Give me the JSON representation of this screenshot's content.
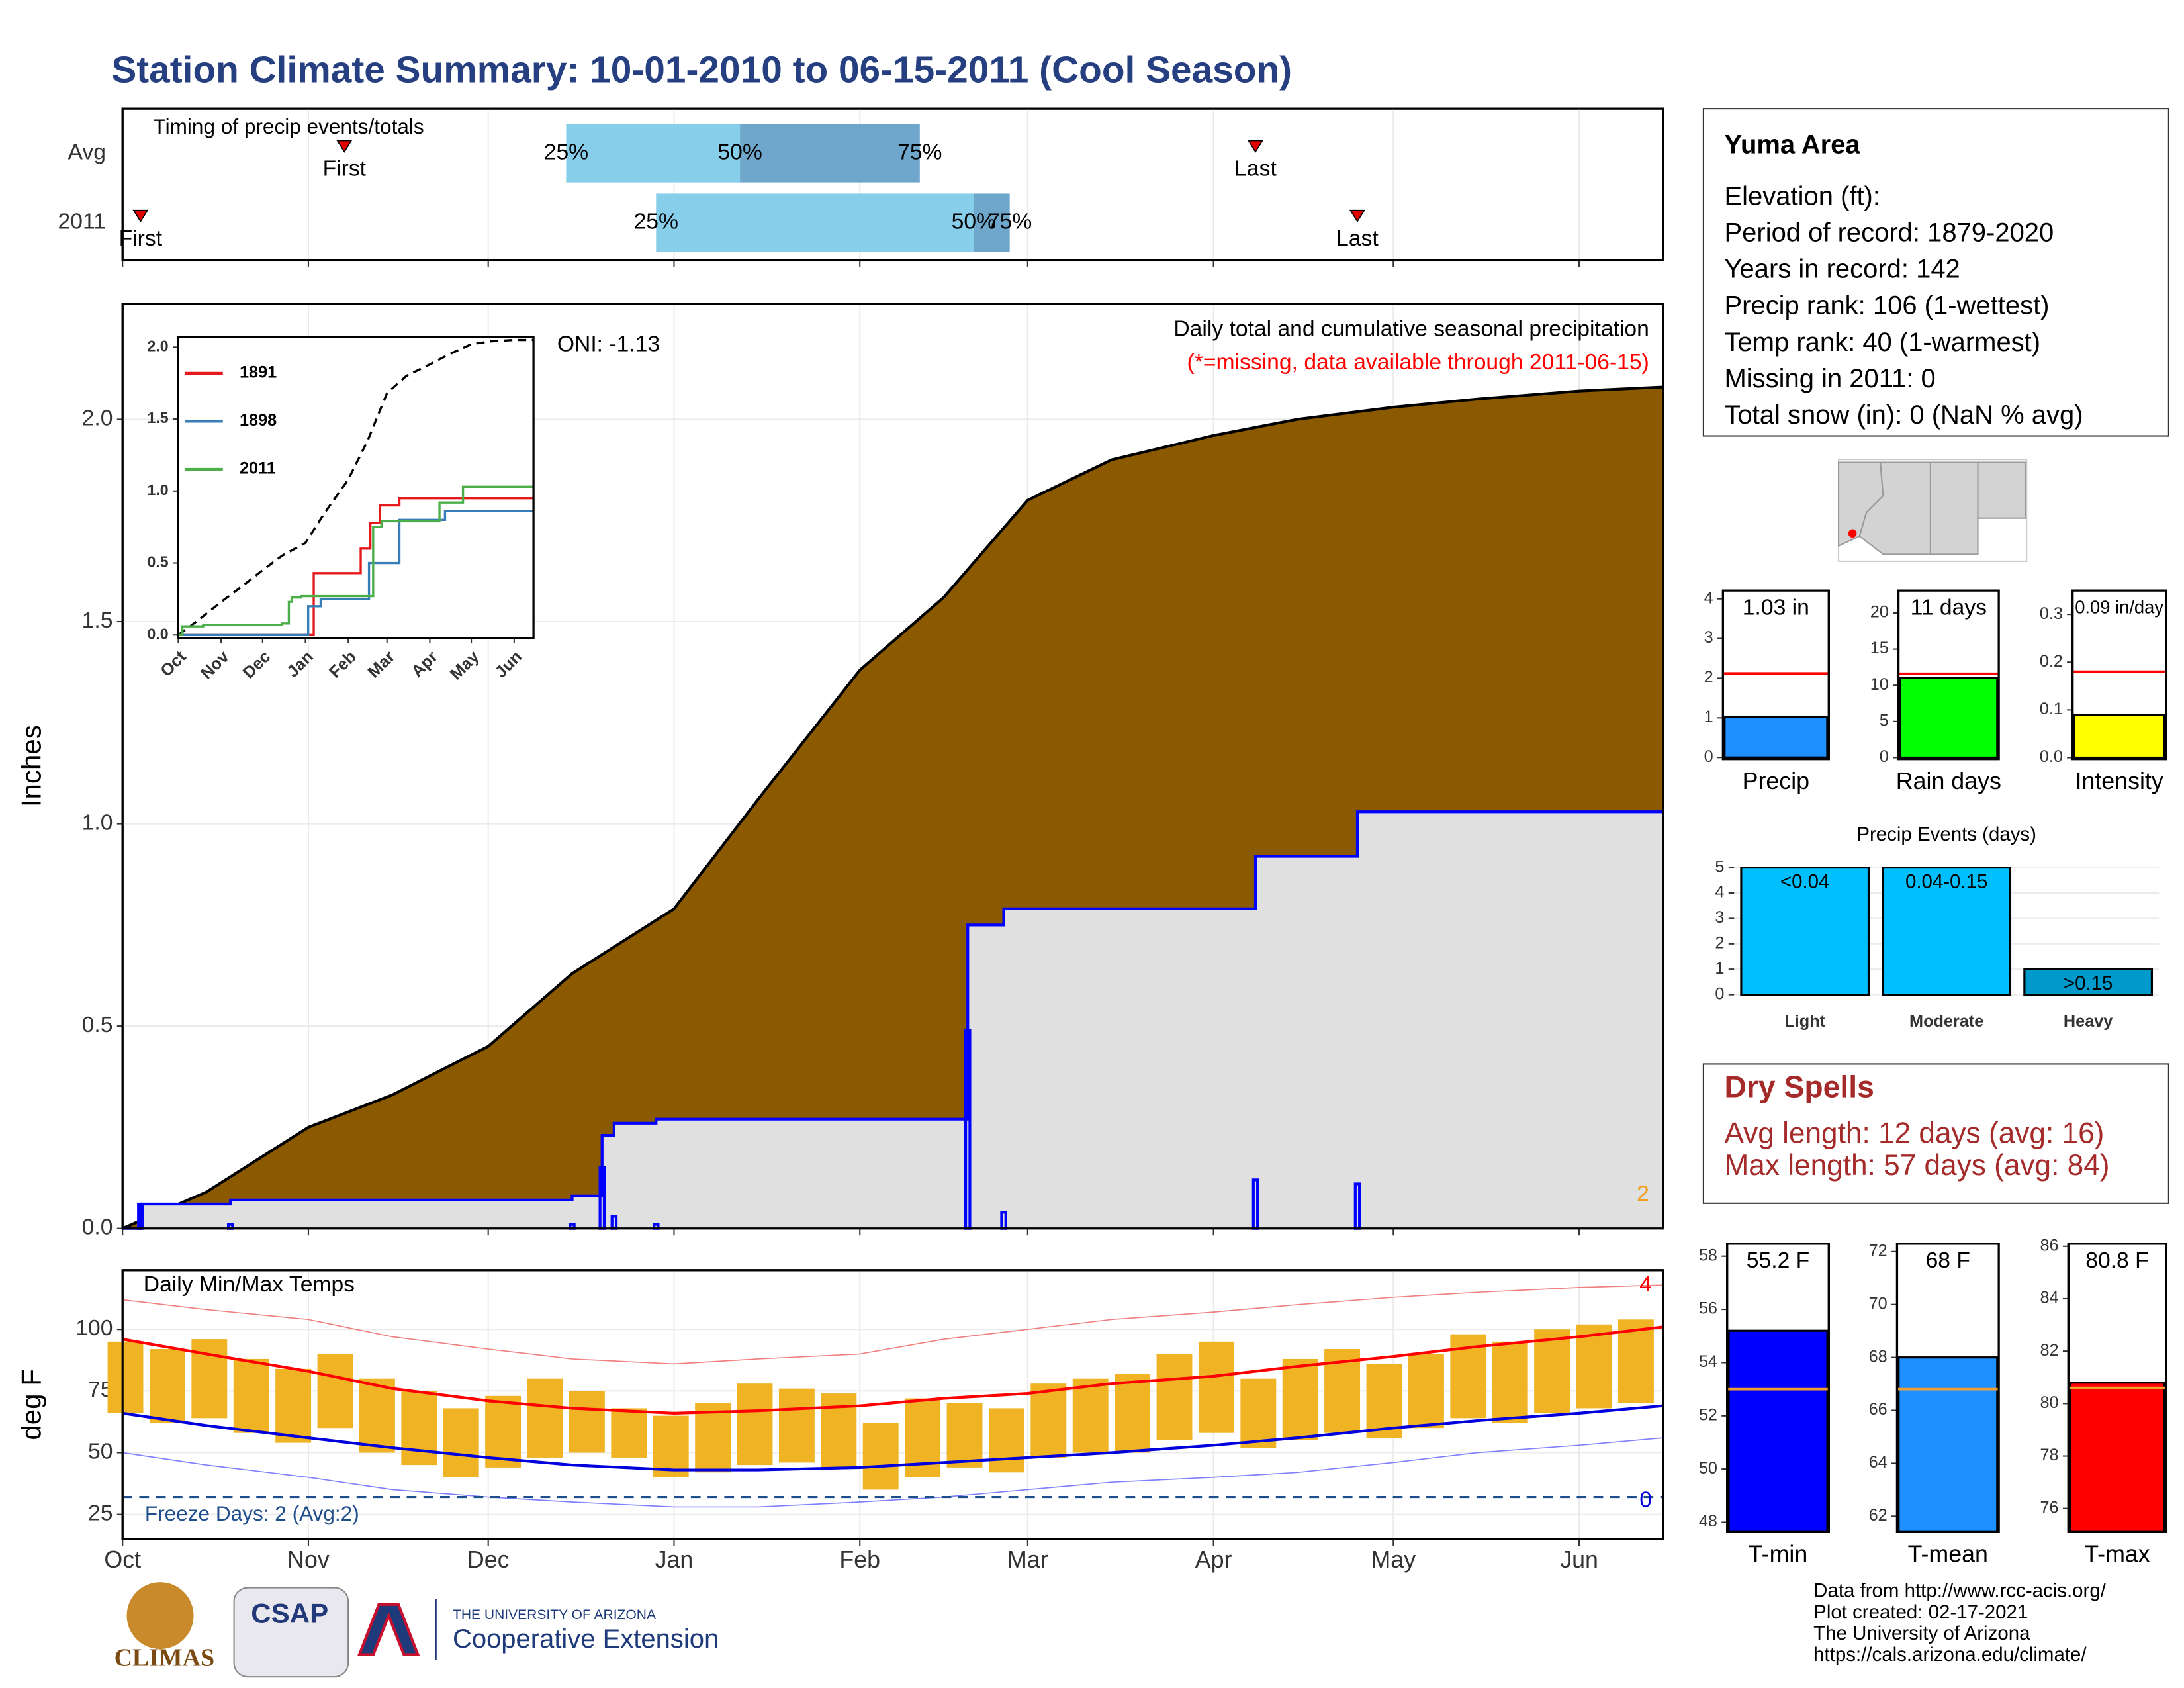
{
  "title": "Station Climate Summary: 10-01-2010 to 06-15-2011 (Cool Season)",
  "station": {
    "title": "Yuma Area",
    "lines": [
      "Elevation (ft):",
      "Period of record: 1879-2020",
      "Years in record: 142",
      "Precip rank: 106 (1-wettest)",
      "Temp rank: 40 (1-warmest)",
      "Missing in 2011: 0",
      "Total snow (in): 0 (NaN % avg)"
    ]
  },
  "dry_spells": {
    "title": "Dry Spells",
    "lines": [
      "Avg length: 12 days (avg: 16)",
      "Max length: 57 days (avg: 84)"
    ]
  },
  "footer": [
    "Data from http://www.rcc-acis.org/",
    "Plot created: 02-17-2021",
    "The University of Arizona",
    "https://cals.arizona.edu/climate/"
  ],
  "logos": {
    "climas": "CLIMAS",
    "csap": "CSAP",
    "ua": "THE UNIVERSITY OF ARIZONA",
    "extension": "Cooperative Extension"
  },
  "chart_data": [
    {
      "type": "timing",
      "title": "Timing of precip events/totals",
      "xlim": [
        "2010-10-01",
        "2011-06-15"
      ],
      "xticks": [
        "2010-10-01",
        "2010-11-01",
        "2010-12-01",
        "2011-01-01",
        "2011-02-01",
        "2011-03-01",
        "2011-04-01",
        "2011-05-01",
        "2011-06-01"
      ],
      "first_label": "First",
      "last_label": "Last",
      "q_labels": [
        "25%",
        "50%",
        "75%"
      ],
      "colors": [
        "#87ceeb",
        "#6fa6cc"
      ],
      "marker_color": "#e00000",
      "rows": [
        {
          "name": "Avg",
          "first": "2010-11-07",
          "q25": "2010-12-14",
          "q50": "2011-01-12",
          "q75": "2011-02-11",
          "last": "2011-04-08"
        },
        {
          "name": "2011",
          "first": "2010-10-04",
          "q25": "2010-12-29",
          "q50": "2011-02-20",
          "q75": "2011-02-26",
          "last": "2011-04-25"
        }
      ]
    },
    {
      "type": "area",
      "title": "Daily total and cumulative seasonal precipitation",
      "subtitle": "(*=missing, data available through 2011-06-15)",
      "annotation": "ONI: -1.13",
      "corner_note": "2",
      "ylabel": "Inches",
      "xlim": [
        "2010-10-01",
        "2011-06-15"
      ],
      "ylim": [
        0,
        2.286
      ],
      "xticks": [
        "2010-10-01",
        "2010-11-01",
        "2010-12-01",
        "2011-01-01",
        "2011-02-01",
        "2011-03-01",
        "2011-04-01",
        "2011-05-01",
        "2011-06-01"
      ],
      "yticks": [
        {
          "value": 0,
          "label": "0.0"
        },
        {
          "value": 0.5,
          "label": "0.5"
        },
        {
          "value": 1,
          "label": "1.0"
        },
        {
          "value": 1.5,
          "label": "1.5"
        },
        {
          "value": 2,
          "label": "2.0"
        }
      ],
      "grid": true,
      "average": {
        "color": "#8b5a00",
        "x": [
          "2010-10-01",
          "2010-10-15",
          "2010-11-01",
          "2010-11-15",
          "2010-12-01",
          "2010-12-15",
          "2011-01-01",
          "2011-01-15",
          "2011-02-01",
          "2011-02-15",
          "2011-03-01",
          "2011-03-15",
          "2011-04-01",
          "2011-04-15",
          "2011-05-01",
          "2011-05-15",
          "2011-06-01",
          "2011-06-15"
        ],
        "values": [
          0,
          0.09,
          0.25,
          0.33,
          0.45,
          0.63,
          0.79,
          1.06,
          1.38,
          1.56,
          1.8,
          1.9,
          1.96,
          2.0,
          2.03,
          2.05,
          2.07,
          2.08
        ]
      },
      "season": {
        "color": "#0000ff",
        "fill": "#e0e0e0",
        "x": [
          "2010-10-01",
          "2010-10-04",
          "2010-10-19",
          "2010-12-15",
          "2010-12-20",
          "2010-12-22",
          "2010-12-29",
          "2011-02-19",
          "2011-02-25",
          "2011-04-08",
          "2011-04-25",
          "2011-06-15"
        ],
        "values": [
          0,
          0.06,
          0.07,
          0.08,
          0.23,
          0.26,
          0.27,
          0.75,
          0.79,
          0.92,
          1.03,
          1.03
        ]
      },
      "daily": {
        "color": "#0000ff",
        "x": [
          "2010-10-04",
          "2010-10-19",
          "2010-12-15",
          "2010-12-20",
          "2010-12-22",
          "2010-12-29",
          "2011-02-19",
          "2011-02-25",
          "2011-04-08",
          "2011-04-25"
        ],
        "values": [
          0.06,
          0.01,
          0.01,
          0.15,
          0.03,
          0.01,
          0.49,
          0.04,
          0.12,
          0.11
        ]
      }
    },
    {
      "type": "line",
      "step": true,
      "xlim": [
        "2010-10-01",
        "2011-06-15"
      ],
      "ylim": [
        -0.02,
        2.07
      ],
      "xticks": [
        {
          "value": "2010-10-01",
          "label": "Oct"
        },
        {
          "value": "2010-11-01",
          "label": "Nov"
        },
        {
          "value": "2010-12-01",
          "label": "Dec"
        },
        {
          "value": "2011-01-01",
          "label": "Jan"
        },
        {
          "value": "2011-02-01",
          "label": "Feb"
        },
        {
          "value": "2011-03-01",
          "label": "Mar"
        },
        {
          "value": "2011-04-01",
          "label": "Apr"
        },
        {
          "value": "2011-05-01",
          "label": "May"
        },
        {
          "value": "2011-06-01",
          "label": "Jun"
        }
      ],
      "yticks": [
        {
          "value": 0,
          "label": "0.0"
        },
        {
          "value": 0.5,
          "label": "0.5"
        },
        {
          "value": 1,
          "label": "1.0"
        },
        {
          "value": 1.5,
          "label": "1.5"
        },
        {
          "value": 2,
          "label": "2.0"
        }
      ],
      "series": [
        {
          "color": "#000000",
          "dashed": true,
          "x": [
            "2010-10-01",
            "2010-10-15",
            "2010-11-01",
            "2010-11-15",
            "2010-12-01",
            "2010-12-15",
            "2011-01-01",
            "2011-01-15",
            "2011-02-01",
            "2011-02-15",
            "2011-03-01",
            "2011-03-15",
            "2011-04-01",
            "2011-04-15",
            "2011-05-01",
            "2011-05-15",
            "2011-06-01",
            "2011-06-15"
          ],
          "values": [
            0,
            0.1,
            0.23,
            0.33,
            0.45,
            0.55,
            0.64,
            0.85,
            1.08,
            1.35,
            1.68,
            1.8,
            1.88,
            1.95,
            2.02,
            2.04,
            2.05,
            2.05
          ]
        },
        {
          "name": "1891",
          "color": "#e41a1c",
          "x": [
            "2010-10-01",
            "2011-01-07",
            "2011-02-10",
            "2011-02-17",
            "2011-02-24",
            "2011-03-10",
            "2011-06-15"
          ],
          "values": [
            0,
            0.43,
            0.6,
            0.78,
            0.9,
            0.95,
            0.95
          ]
        },
        {
          "name": "1898",
          "color": "#377eb8",
          "x": [
            "2010-10-01",
            "2011-01-03",
            "2011-01-12",
            "2011-02-16",
            "2011-03-10",
            "2011-04-12",
            "2011-06-15"
          ],
          "values": [
            0,
            0.2,
            0.25,
            0.5,
            0.8,
            0.86,
            0.86
          ]
        },
        {
          "name": "2011",
          "color": "#4daf4a",
          "x": [
            "2010-10-01",
            "2010-10-04",
            "2010-10-19",
            "2010-12-15",
            "2010-12-20",
            "2010-12-22",
            "2010-12-29",
            "2011-02-19",
            "2011-02-25",
            "2011-04-08",
            "2011-04-25",
            "2011-06-15"
          ],
          "values": [
            0,
            0.06,
            0.07,
            0.08,
            0.23,
            0.26,
            0.27,
            0.75,
            0.79,
            0.92,
            1.03,
            1.03
          ]
        }
      ]
    },
    {
      "type": "temps",
      "title": "Daily Min/Max Temps",
      "ylabel": "deg F",
      "xlim": [
        "2010-10-01",
        "2011-06-15"
      ],
      "ylim": [
        15,
        124
      ],
      "grid": true,
      "xticks": [
        {
          "value": "2010-10-01",
          "label": "Oct"
        },
        {
          "value": "2010-11-01",
          "label": "Nov"
        },
        {
          "value": "2010-12-01",
          "label": "Dec"
        },
        {
          "value": "2011-01-01",
          "label": "Jan"
        },
        {
          "value": "2011-02-01",
          "label": "Feb"
        },
        {
          "value": "2011-03-01",
          "label": "Mar"
        },
        {
          "value": "2011-04-01",
          "label": "Apr"
        },
        {
          "value": "2011-05-01",
          "label": "May"
        },
        {
          "value": "2011-06-01",
          "label": "Jun"
        }
      ],
      "yticks": [
        25,
        50,
        75,
        100
      ],
      "observed": {
        "color": "#f0b323",
        "x": [
          "2010-10-01",
          "2010-10-08",
          "2010-10-15",
          "2010-10-22",
          "2010-10-29",
          "2010-11-05",
          "2010-11-12",
          "2010-11-19",
          "2010-11-26",
          "2010-12-03",
          "2010-12-10",
          "2010-12-17",
          "2010-12-24",
          "2010-12-31",
          "2011-01-07",
          "2011-01-14",
          "2011-01-21",
          "2011-01-28",
          "2011-02-04",
          "2011-02-11",
          "2011-02-18",
          "2011-02-25",
          "2011-03-04",
          "2011-03-11",
          "2011-03-18",
          "2011-03-25",
          "2011-04-01",
          "2011-04-08",
          "2011-04-15",
          "2011-04-22",
          "2011-04-29",
          "2011-05-06",
          "2011-05-13",
          "2011-05-20",
          "2011-05-27",
          "2011-06-03",
          "2011-06-10"
        ],
        "max": [
          95,
          92,
          96,
          88,
          84,
          90,
          80,
          75,
          68,
          73,
          80,
          75,
          68,
          65,
          70,
          78,
          76,
          74,
          62,
          72,
          70,
          68,
          78,
          80,
          82,
          90,
          95,
          80,
          88,
          92,
          86,
          90,
          98,
          95,
          100,
          102,
          104
        ],
        "min": [
          66,
          62,
          64,
          58,
          54,
          60,
          50,
          45,
          40,
          44,
          48,
          50,
          48,
          40,
          42,
          45,
          46,
          44,
          35,
          40,
          44,
          42,
          48,
          50,
          50,
          55,
          58,
          52,
          55,
          58,
          56,
          60,
          64,
          62,
          66,
          68,
          70
        ]
      },
      "normals": {
        "max_color": "#ff0000",
        "min_color": "#0000dd",
        "x": [
          "2010-10-01",
          "2010-10-15",
          "2010-11-01",
          "2010-11-15",
          "2010-12-01",
          "2010-12-15",
          "2011-01-01",
          "2011-01-15",
          "2011-02-01",
          "2011-02-15",
          "2011-03-01",
          "2011-03-15",
          "2011-04-01",
          "2011-04-15",
          "2011-05-01",
          "2011-05-15",
          "2011-06-01",
          "2011-06-15"
        ],
        "max": [
          96,
          90,
          83,
          76,
          71,
          68,
          66,
          67,
          69,
          72,
          74,
          78,
          81,
          85,
          89,
          93,
          97,
          101
        ],
        "min": [
          66,
          61,
          56,
          52,
          48,
          45,
          43,
          43,
          44,
          46,
          48,
          50,
          53,
          56,
          60,
          63,
          66,
          69
        ]
      },
      "records": {
        "max_color": "#f08080",
        "min_color": "#8080ff",
        "x": [
          "2010-10-01",
          "2010-10-15",
          "2010-11-01",
          "2010-11-15",
          "2010-12-01",
          "2010-12-15",
          "2011-01-01",
          "2011-01-15",
          "2011-02-01",
          "2011-02-15",
          "2011-03-01",
          "2011-03-15",
          "2011-04-01",
          "2011-04-15",
          "2011-05-01",
          "2011-05-15",
          "2011-06-01",
          "2011-06-15"
        ],
        "max": [
          112,
          108,
          104,
          97,
          92,
          88,
          86,
          88,
          90,
          96,
          100,
          104,
          107,
          110,
          113,
          115,
          117,
          118
        ],
        "min": [
          50,
          45,
          40,
          35,
          32,
          30,
          28,
          28,
          30,
          32,
          35,
          38,
          40,
          42,
          46,
          50,
          53,
          56
        ]
      },
      "freeze": {
        "value": 32,
        "label": "Freeze Days: 2 (Avg:2)",
        "color": "#1f4e8c"
      },
      "record_high_count": "4",
      "record_low_count": "0"
    },
    {
      "type": "bar",
      "categories": [
        "Precip"
      ],
      "values": [
        1.03
      ],
      "value_labels": [
        "1.03 in"
      ],
      "color": "#1e90ff",
      "avg": 2.12,
      "avg_color": "#ff0000",
      "ylim": [
        -0.04,
        4.21
      ],
      "yticks": [
        0,
        1,
        2,
        3,
        4
      ]
    },
    {
      "type": "bar",
      "categories": [
        "Rain days"
      ],
      "values": [
        11
      ],
      "value_labels": [
        "11 days"
      ],
      "color": "#00ff00",
      "avg": 11.6,
      "avg_color": "#ff0000",
      "ylim": [
        -0.2,
        23.1
      ],
      "yticks": [
        0,
        5,
        10,
        15,
        20
      ]
    },
    {
      "type": "bar",
      "categories": [
        "Intensity"
      ],
      "values": [
        0.09
      ],
      "value_labels": [
        "0.09 in/day"
      ],
      "color": "#ffff00",
      "avg": 0.18,
      "avg_color": "#ff0000",
      "ylim": [
        -0.003,
        0.35
      ],
      "yticks": [
        {
          "value": 0,
          "label": "0.0"
        },
        {
          "value": 0.1,
          "label": "0.1"
        },
        {
          "value": 0.2,
          "label": "0.2"
        },
        {
          "value": 0.3,
          "label": "0.3"
        }
      ]
    },
    {
      "type": "bar",
      "title": "Precip Events (days)",
      "categories": [
        "Light",
        "Moderate",
        "Heavy"
      ],
      "values": [
        5,
        5,
        1
      ],
      "bar_labels": [
        "<0.04",
        "0.04-0.15",
        ">0.15"
      ],
      "colors": [
        "#00bfff",
        "#00bfff",
        "#0099cc"
      ],
      "grid": true,
      "ylim": [
        -0.1,
        5.16
      ],
      "yticks": [
        0,
        1,
        2,
        3,
        4,
        5
      ]
    },
    {
      "type": "bar",
      "categories": [
        "T-min"
      ],
      "values": [
        55.2
      ],
      "value_labels": [
        "55.2 F"
      ],
      "color": "#0000ff",
      "avg": 53,
      "avg_color": "#f0a030",
      "ylim": [
        47.63,
        58.47
      ],
      "yticks": [
        48,
        50,
        52,
        54,
        56,
        58
      ]
    },
    {
      "type": "bar",
      "categories": [
        "T-mean"
      ],
      "values": [
        68
      ],
      "value_labels": [
        "68 F"
      ],
      "color": "#1e90ff",
      "avg": 66.8,
      "avg_color": "#f0a030",
      "ylim": [
        61.4,
        72.3
      ],
      "yticks": [
        62,
        64,
        66,
        68,
        70,
        72
      ]
    },
    {
      "type": "bar",
      "categories": [
        "T-max"
      ],
      "values": [
        80.8
      ],
      "value_labels": [
        "80.8 F"
      ],
      "color": "#ff0000",
      "avg": 80.6,
      "avg_color": "#f0a030",
      "ylim": [
        75.1,
        86.1
      ],
      "yticks": [
        76,
        78,
        80,
        82,
        84,
        86
      ]
    }
  ]
}
